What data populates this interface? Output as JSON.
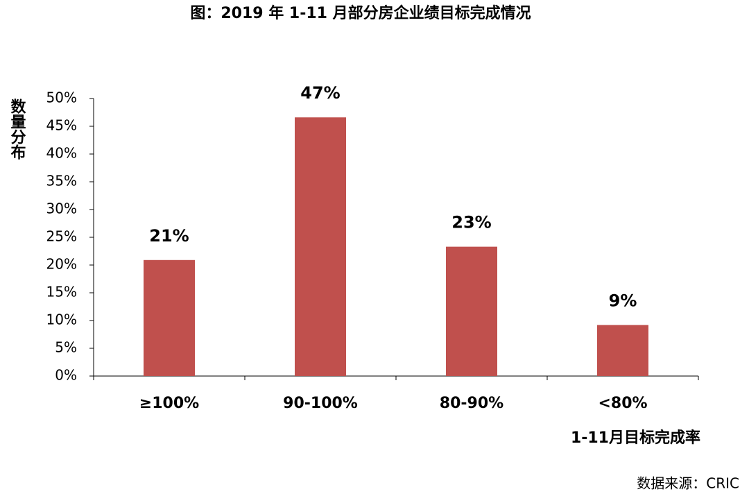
{
  "chart_data": {
    "type": "bar",
    "title": "图：2019 年 1-11 月部分房企业绩目标完成情况",
    "y_label": "数量分布",
    "x_label": "1-11月目标完成率",
    "source": "数据来源：CRIC",
    "categories": [
      "≥100%",
      "90-100%",
      "80-90%",
      "<80%"
    ],
    "values": [
      20.9,
      46.6,
      23.3,
      9.2
    ],
    "value_labels": [
      "21%",
      "47%",
      "23%",
      "9%"
    ],
    "color": "#c0504d",
    "ylim": [
      0,
      50
    ],
    "yticks": [
      {
        "value": 0,
        "label": "0%"
      },
      {
        "value": 5,
        "label": "5%"
      },
      {
        "value": 10,
        "label": "10%"
      },
      {
        "value": 15,
        "label": "15%"
      },
      {
        "value": 20,
        "label": "20%"
      },
      {
        "value": 25,
        "label": "25%"
      },
      {
        "value": 30,
        "label": "30%"
      },
      {
        "value": 35,
        "label": "35%"
      },
      {
        "value": 40,
        "label": "40%"
      },
      {
        "value": 45,
        "label": "45%"
      },
      {
        "value": 50,
        "label": "50%"
      }
    ],
    "grid": false
  }
}
